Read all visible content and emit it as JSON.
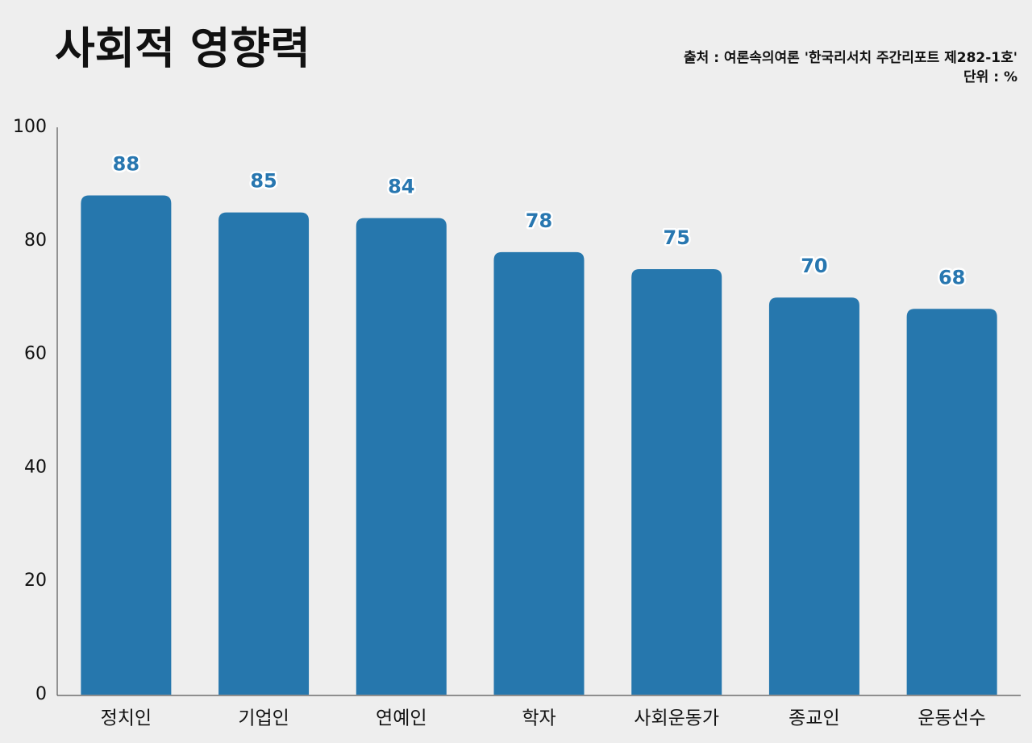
{
  "chart_data": {
    "type": "bar",
    "title": "사회적 영향력",
    "source": "출처 : 여론속의여론 '한국리서치 주간리포트 제282-1호'",
    "unit": "단위 : %",
    "categories": [
      "정치인",
      "기업인",
      "연예인",
      "학자",
      "사회운동가",
      "종교인",
      "운동선수"
    ],
    "values": [
      88,
      85,
      84,
      78,
      75,
      70,
      68
    ],
    "color": "#2677ad",
    "ylim": [
      0,
      100
    ],
    "yticks": [
      0,
      20,
      40,
      60,
      80,
      100
    ],
    "grid": false
  }
}
